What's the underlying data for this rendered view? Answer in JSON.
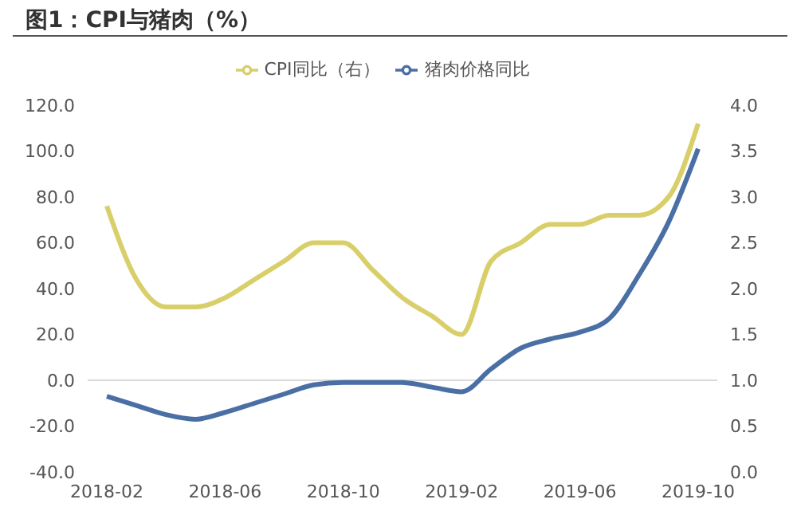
{
  "chart_data": {
    "type": "line",
    "title": "图1：CPI与猪肉（%）",
    "categories": [
      "2018-02",
      null,
      null,
      null,
      "2018-06",
      null,
      null,
      null,
      "2018-10",
      null,
      null,
      null,
      "2019-02",
      null,
      null,
      null,
      "2019-06",
      null,
      null,
      null,
      "2019-10"
    ],
    "series": [
      {
        "name": "猪肉价格同比",
        "color": "#4a6fa5",
        "values": [
          -7,
          -11,
          -15,
          -17,
          -14,
          -10,
          -6,
          -2,
          -1,
          -1,
          -1,
          -3,
          -5,
          5,
          14,
          18,
          21,
          27,
          46,
          69,
          101
        ]
      },
      {
        "name": "CPI同比（右）",
        "color": "#d9cf6a",
        "axis": "y2",
        "values": [
          2.9,
          2.1,
          1.8,
          1.8,
          1.9,
          2.1,
          2.3,
          2.5,
          2.5,
          2.2,
          1.9,
          1.7,
          1.5,
          2.3,
          2.5,
          2.7,
          2.7,
          2.8,
          2.8,
          3.0,
          3.8
        ]
      }
    ],
    "ylim": [
      -40,
      120
    ],
    "yticks": [
      {
        "value": -40,
        "label": "-40.0"
      },
      {
        "value": -20,
        "label": "-20.0"
      },
      {
        "value": 0,
        "label": "0.0"
      },
      {
        "value": 20,
        "label": "20.0"
      },
      {
        "value": 40,
        "label": "40.0"
      },
      {
        "value": 60,
        "label": "60.0"
      },
      {
        "value": 80,
        "label": "80.0"
      },
      {
        "value": 100,
        "label": "100.0"
      },
      {
        "value": 120,
        "label": "120.0"
      }
    ],
    "y2lim": [
      0,
      4
    ],
    "y2ticks": [
      {
        "value": 0,
        "label": "0.0"
      },
      {
        "value": 0.5,
        "label": "0.5"
      },
      {
        "value": 1,
        "label": "1.0"
      },
      {
        "value": 1.5,
        "label": "1.5"
      },
      {
        "value": 2,
        "label": "2.0"
      },
      {
        "value": 2.5,
        "label": "2.5"
      },
      {
        "value": 3,
        "label": "3.0"
      },
      {
        "value": 3.5,
        "label": "3.5"
      },
      {
        "value": 4,
        "label": "4.0"
      }
    ],
    "ref_lines": [
      {
        "axis": "y",
        "value": 0,
        "color": "#d9d9d9"
      }
    ],
    "legend": "top",
    "grid": false,
    "marker": "none",
    "line_style": "solid"
  }
}
